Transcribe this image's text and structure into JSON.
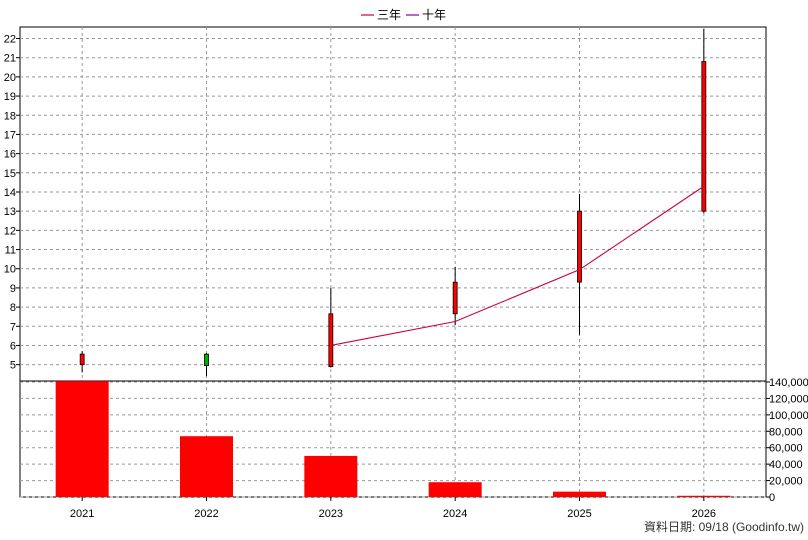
{
  "chart_data": {
    "type": "candlestick+bar",
    "categories": [
      "2021",
      "2022",
      "2023",
      "2024",
      "2025",
      "2026"
    ],
    "price_axis": {
      "ylim": [
        4.2,
        22.6
      ],
      "ticks": [
        "5",
        "6",
        "7",
        "8",
        "9",
        "10",
        "11",
        "12",
        "13",
        "14",
        "15",
        "16",
        "17",
        "18",
        "19",
        "20",
        "21",
        "22"
      ]
    },
    "volume_axis": {
      "ylim": [
        0,
        140000
      ],
      "ticks": [
        "0",
        "20,000",
        "40,000",
        "60,000",
        "80,000",
        "100,000",
        "120,000",
        "140,000"
      ]
    },
    "candles": [
      {
        "x": "2021",
        "open": 5.0,
        "close": 5.55,
        "high": 5.7,
        "low": 4.6,
        "color": "#ff0000"
      },
      {
        "x": "2022",
        "open": 5.55,
        "close": 4.95,
        "high": 5.6,
        "low": 4.4,
        "color": "#00b000"
      },
      {
        "x": "2023",
        "open": 4.9,
        "close": 7.65,
        "high": 9.0,
        "low": 4.85,
        "color": "#ff0000"
      },
      {
        "x": "2024",
        "open": 7.65,
        "close": 9.3,
        "high": 10.1,
        "low": 7.05,
        "color": "#ff0000"
      },
      {
        "x": "2025",
        "open": 9.3,
        "close": 13.0,
        "high": 13.9,
        "low": 6.55,
        "color": "#ff0000"
      },
      {
        "x": "2026",
        "open": 13.0,
        "close": 20.8,
        "high": 22.5,
        "low": 12.9,
        "color": "#ff0000"
      }
    ],
    "series": [
      {
        "name": "三年",
        "color": "#cc0044",
        "x": [
          "2023",
          "2024",
          "2025",
          "2026"
        ],
        "values": [
          6.0,
          7.25,
          9.95,
          14.3
        ]
      },
      {
        "name": "十年",
        "color": "#8800aa",
        "x": [],
        "values": []
      }
    ],
    "volume": {
      "color": "#ff0000",
      "values": [
        141000,
        74000,
        50000,
        18000,
        6500,
        1500
      ]
    },
    "grid": true,
    "legend": "top-center"
  },
  "footer": {
    "text": "資料日期: 09/18  (Goodinfo.tw)"
  }
}
